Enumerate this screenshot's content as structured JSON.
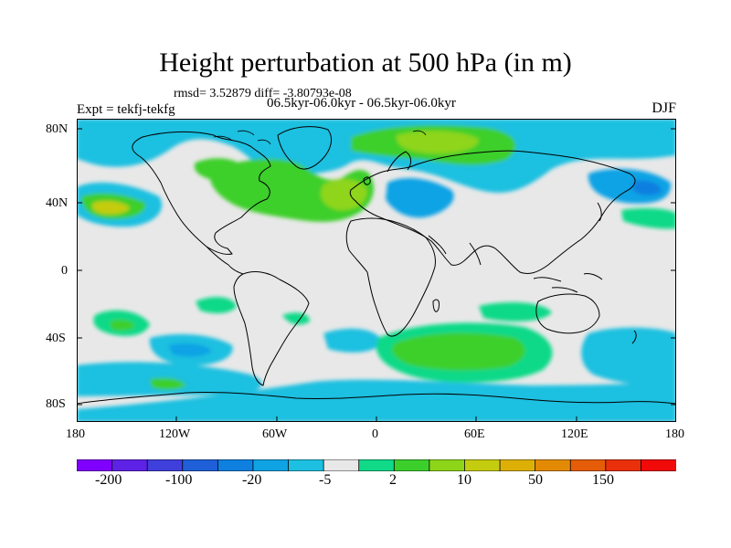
{
  "title": "Height perturbation at 500 hPa (in m)",
  "subtitle_stats": "rmsd= 3.52879 diff= -3.80793e-08",
  "left_label": "Expt = tekfj-tekfg",
  "center_label": "06.5kyr-06.0kyr - 06.5kyr-06.0kyr",
  "right_label": "DJF",
  "lat_labels": [
    "80N",
    "40N",
    "0",
    "40S",
    "80S"
  ],
  "lon_labels": [
    "180",
    "120W",
    "60W",
    "0",
    "60E",
    "120E",
    "180"
  ],
  "colorbar": {
    "colors": [
      "#7f00ff",
      "#5e22e6",
      "#3f3fdc",
      "#1f5fd8",
      "#0f7fe0",
      "#0fa3e4",
      "#1dc0e0",
      "#e8e8e8",
      "#10d988",
      "#3ccf2c",
      "#8ed51a",
      "#c4cc10",
      "#ddb007",
      "#e38a05",
      "#e55d08",
      "#e9300a",
      "#f00a0a"
    ],
    "labels": [
      "-200",
      "-100",
      "-20",
      "-5",
      "2",
      "10",
      "50",
      "150"
    ]
  },
  "field_colors": {
    "neutral": "#e8e8e8",
    "cyan": "#1dc0e0",
    "blue": "#0fa3e4",
    "dblue": "#0f7fe0",
    "teal": "#10d988",
    "green": "#3ccf2c",
    "lgreen": "#8ed51a",
    "yellow": "#c4cc10"
  }
}
